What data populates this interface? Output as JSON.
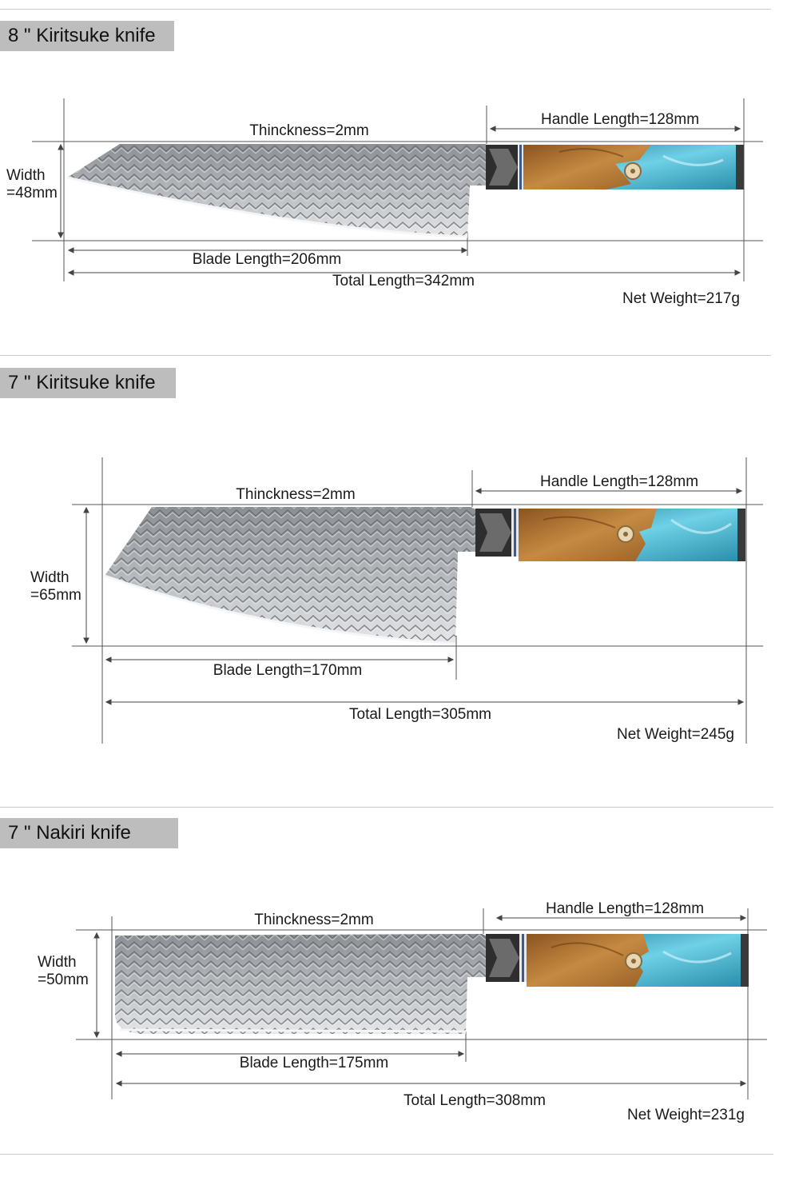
{
  "knives": [
    {
      "title": "8 \" Kiritsuke knife",
      "thickness_label": "Thinckness=2mm",
      "handle_label": "Handle Length=128mm",
      "width_label_1": "Width",
      "width_label_2": "=48mm",
      "blade_label": "Blade Length=206mm",
      "total_label": "Total Length=342mm",
      "weight_label": "Net Weight=217g"
    },
    {
      "title": "7 \" Kiritsuke knife",
      "thickness_label": "Thinckness=2mm",
      "handle_label": "Handle Length=128mm",
      "width_label_1": "Width",
      "width_label_2": "=65mm",
      "blade_label": "Blade Length=170mm",
      "total_label": "Total Length=305mm",
      "weight_label": "Net Weight=245g"
    },
    {
      "title": "7 \" Nakiri knife",
      "thickness_label": "Thinckness=2mm",
      "handle_label": "Handle Length=128mm",
      "width_label_1": "Width",
      "width_label_2": "=50mm",
      "blade_label": "Blade Length=175mm",
      "total_label": "Total Length=308mm",
      "weight_label": "Net Weight=231g"
    }
  ],
  "colors": {
    "title_tab": "#bdbdbd",
    "line": "#555555",
    "blade_dark": "#6f7479",
    "blade_light": "#d9dcdf",
    "wood": "#a86f2f",
    "resin": "#3fa9c4",
    "bolster": "#2b2b2b",
    "spacer": "#3c5a8a"
  },
  "icons": [
    "blade-pattern",
    "wood-resin-handle",
    "handle-rivet-emblem"
  ]
}
